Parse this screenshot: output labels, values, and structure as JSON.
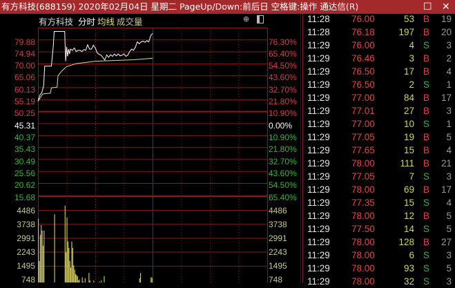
{
  "window": {
    "title": "有方科技(688159) 2020年02月04日 星期二 PageUp/Down:前后日 空格键:操作 通达信(R)",
    "buttons": [
      "maximize-icon",
      "close-icon"
    ]
  },
  "chart_header": {
    "name": "有方科技",
    "mode": "分时",
    "avg_label": "均线",
    "volume_label": "成交量",
    "icons": [
      "up-arrow-circle-icon",
      "panel-toggle-icon"
    ]
  },
  "colors": {
    "up": "#e04646",
    "down": "#3cb43c",
    "grid": "#8b1a1a",
    "price_line": "#ffffff",
    "avg_line": "#e8d890",
    "volume": "#d8d060",
    "title_bar": "#a3292b"
  },
  "chart_data": {
    "type": "line",
    "prev_close": 45.31,
    "x_unit": "minutes since 09:30",
    "xlim": [
      0,
      240
    ],
    "price_axis_left": [
      "79.88",
      "74.94",
      "70.00",
      "65.06",
      "60.13",
      "55.19",
      "50.25",
      "45.31",
      "40.37",
      "35.43",
      "30.49",
      "25.56",
      "20.62",
      "15.68"
    ],
    "price_axis_right": [
      "76.30%",
      "65.40%",
      "54.50%",
      "43.60%",
      "32.70%",
      "21.80%",
      "10.90%",
      "0.00%",
      "10.90%",
      "21.80%",
      "32.70%",
      "43.60%",
      "54.50%",
      "65.40%"
    ],
    "ylim": [
      15.68,
      79.88
    ],
    "volume_axis": [
      "4486",
      "3738",
      "2991",
      "2243",
      "1495",
      "748"
    ],
    "volume_ylim": [
      0,
      4486
    ],
    "price_series": [
      [
        0,
        49.5
      ],
      [
        2,
        52
      ],
      [
        4,
        53
      ],
      [
        6,
        56
      ],
      [
        7,
        64
      ],
      [
        14,
        64
      ],
      [
        16,
        72
      ],
      [
        17,
        78.3
      ],
      [
        28,
        78.3
      ],
      [
        29,
        66
      ],
      [
        30,
        72
      ],
      [
        31,
        68
      ],
      [
        32,
        71
      ],
      [
        33,
        69
      ],
      [
        34,
        71
      ],
      [
        36,
        70.5
      ],
      [
        38,
        71.5
      ],
      [
        40,
        70
      ],
      [
        42,
        70.5
      ],
      [
        44,
        70.5
      ],
      [
        46,
        70
      ],
      [
        48,
        70.8
      ],
      [
        50,
        70.5
      ],
      [
        52,
        72.8
      ],
      [
        54,
        71
      ],
      [
        56,
        71
      ],
      [
        58,
        72.6
      ],
      [
        60,
        71.5
      ],
      [
        62,
        69.5
      ],
      [
        64,
        68.8
      ],
      [
        66,
        68.5
      ],
      [
        68,
        67.5
      ],
      [
        70,
        66.5
      ],
      [
        72,
        68.6
      ],
      [
        74,
        67.6
      ],
      [
        76,
        68.7
      ],
      [
        78,
        68
      ],
      [
        80,
        69
      ],
      [
        82,
        68.2
      ],
      [
        84,
        69
      ],
      [
        86,
        68.2
      ],
      [
        88,
        68.5
      ],
      [
        90,
        69
      ],
      [
        92,
        68
      ],
      [
        94,
        68.5
      ],
      [
        96,
        70
      ],
      [
        98,
        71
      ],
      [
        100,
        70.5
      ],
      [
        102,
        71.8
      ],
      [
        104,
        74
      ],
      [
        106,
        73.2
      ],
      [
        108,
        74
      ],
      [
        110,
        74.3
      ],
      [
        112,
        73.8
      ],
      [
        114,
        74.5
      ],
      [
        116,
        74
      ],
      [
        118,
        76.5
      ],
      [
        120,
        77.5
      ]
    ],
    "avg_series": [
      [
        0,
        49.5
      ],
      [
        5,
        52.5
      ],
      [
        13,
        52.8
      ],
      [
        14,
        55
      ],
      [
        20,
        55.3
      ],
      [
        21,
        60
      ],
      [
        25,
        62
      ],
      [
        30,
        63.8
      ],
      [
        40,
        65
      ],
      [
        60,
        66
      ],
      [
        80,
        66.3
      ],
      [
        100,
        66.6
      ],
      [
        120,
        67.2
      ]
    ],
    "volume_series": [
      [
        0,
        3450
      ],
      [
        1,
        1500
      ],
      [
        2,
        2700
      ],
      [
        3,
        3150
      ],
      [
        4,
        2900
      ],
      [
        5,
        2200
      ],
      [
        6,
        2900
      ],
      [
        7,
        60
      ],
      [
        17,
        3650
      ],
      [
        28,
        4050
      ],
      [
        29,
        1900
      ],
      [
        30,
        3500
      ],
      [
        31,
        2400
      ],
      [
        32,
        2100
      ],
      [
        33,
        1500
      ],
      [
        34,
        1200
      ],
      [
        35,
        2400
      ],
      [
        36,
        2100
      ],
      [
        37,
        1300
      ],
      [
        38,
        1100
      ],
      [
        39,
        900
      ],
      [
        40,
        850
      ],
      [
        41,
        800
      ],
      [
        42,
        600
      ],
      [
        43,
        650
      ],
      [
        44,
        500
      ],
      [
        45,
        400
      ],
      [
        46,
        750
      ],
      [
        47,
        550
      ],
      [
        48,
        400
      ],
      [
        49,
        700
      ],
      [
        50,
        450
      ],
      [
        51,
        420
      ],
      [
        52,
        380
      ],
      [
        53,
        950
      ],
      [
        54,
        600
      ],
      [
        55,
        250
      ],
      [
        56,
        480
      ],
      [
        57,
        300
      ],
      [
        58,
        600
      ],
      [
        59,
        400
      ],
      [
        60,
        350
      ],
      [
        61,
        300
      ],
      [
        62,
        380
      ],
      [
        63,
        300
      ],
      [
        64,
        550
      ],
      [
        65,
        400
      ],
      [
        66,
        600
      ],
      [
        67,
        500
      ],
      [
        68,
        380
      ],
      [
        69,
        800
      ],
      [
        70,
        500
      ],
      [
        71,
        200
      ],
      [
        72,
        300
      ],
      [
        73,
        350
      ],
      [
        74,
        250
      ],
      [
        75,
        200
      ],
      [
        76,
        150
      ],
      [
        77,
        250
      ],
      [
        78,
        170
      ],
      [
        79,
        120
      ],
      [
        80,
        200
      ],
      [
        81,
        300
      ],
      [
        82,
        150
      ],
      [
        83,
        250
      ],
      [
        84,
        180
      ],
      [
        85,
        400
      ],
      [
        86,
        200
      ],
      [
        87,
        100
      ],
      [
        88,
        150
      ],
      [
        89,
        200
      ],
      [
        90,
        250
      ],
      [
        91,
        120
      ],
      [
        92,
        300
      ],
      [
        93,
        200
      ],
      [
        94,
        150
      ],
      [
        95,
        250
      ],
      [
        96,
        350
      ],
      [
        97,
        100
      ],
      [
        98,
        400
      ],
      [
        99,
        200
      ],
      [
        100,
        150
      ],
      [
        101,
        200
      ],
      [
        102,
        250
      ],
      [
        103,
        400
      ],
      [
        104,
        300
      ],
      [
        105,
        150
      ],
      [
        106,
        700
      ],
      [
        107,
        950
      ],
      [
        108,
        400
      ],
      [
        109,
        150
      ],
      [
        110,
        250
      ],
      [
        111,
        500
      ],
      [
        112,
        450
      ],
      [
        113,
        200
      ],
      [
        114,
        100
      ],
      [
        115,
        300
      ],
      [
        116,
        200
      ],
      [
        117,
        250
      ],
      [
        118,
        750
      ],
      [
        119,
        720
      ]
    ]
  },
  "ticks": {
    "columns": [
      "time",
      "price",
      "volume",
      "side",
      "count"
    ],
    "rows": [
      [
        "11:28",
        "76.00",
        "53",
        "B",
        "19"
      ],
      [
        "11:28",
        "76.18",
        "197",
        "B",
        "20"
      ],
      [
        "11:29",
        "76.00",
        "4",
        "S",
        "3"
      ],
      [
        "11:29",
        "76.46",
        "3",
        "B",
        "2"
      ],
      [
        "11:29",
        "76.50",
        "17",
        "B",
        "4"
      ],
      [
        "11:29",
        "76.50",
        "2",
        "S",
        "1"
      ],
      [
        "11:29",
        "77.00",
        "84",
        "B",
        "17"
      ],
      [
        "11:29",
        "77.01",
        "27",
        "B",
        "3"
      ],
      [
        "11:29",
        "77.00",
        "10",
        "S",
        "1"
      ],
      [
        "11:29",
        "77.05",
        "19",
        "B",
        "5"
      ],
      [
        "11:29",
        "77.65",
        "15",
        "B",
        "4"
      ],
      [
        "11:29",
        "78.00",
        "111",
        "B",
        "21"
      ],
      [
        "11:29",
        "77.05",
        "7",
        "S",
        "3"
      ],
      [
        "11:29",
        "78.00",
        "69",
        "B",
        "17"
      ],
      [
        "11:29",
        "77.35",
        "15",
        "S",
        "4"
      ],
      [
        "11:29",
        "78.00",
        "12",
        "B",
        "5"
      ],
      [
        "11:29",
        "77.50",
        "14",
        "S",
        "5"
      ],
      [
        "11:29",
        "78.00",
        "128",
        "B",
        "27"
      ],
      [
        "11:29",
        "78.00",
        "6",
        "S",
        "3"
      ],
      [
        "11:29",
        "78.00",
        "93",
        "S",
        "5"
      ],
      [
        "11:29",
        "78.00",
        "32",
        "S",
        "3"
      ]
    ]
  }
}
